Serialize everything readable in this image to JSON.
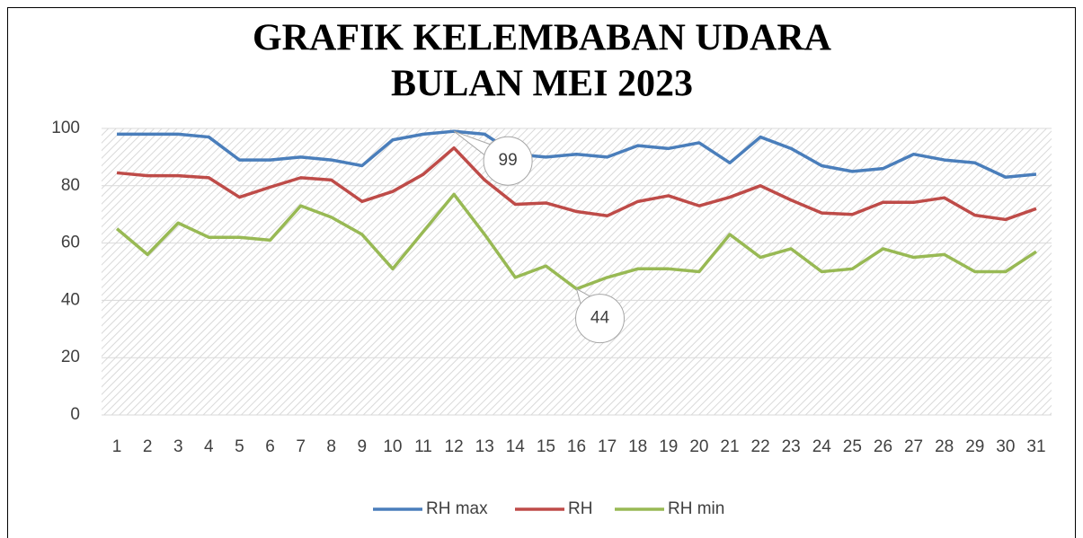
{
  "chart_data": {
    "type": "line",
    "title": [
      "GRAFIK KELEMBABAN UDARA",
      "BULAN MEI 2023"
    ],
    "categories": [
      "1",
      "2",
      "3",
      "4",
      "5",
      "6",
      "7",
      "8",
      "9",
      "10",
      "11",
      "12",
      "13",
      "14",
      "15",
      "16",
      "17",
      "18",
      "19",
      "20",
      "21",
      "22",
      "23",
      "24",
      "25",
      "26",
      "27",
      "28",
      "29",
      "30",
      "31"
    ],
    "series": [
      {
        "name": "RH max",
        "color": "#4a7ebb",
        "values": [
          98,
          98,
          98,
          97,
          89,
          89,
          90,
          89,
          87,
          96,
          98,
          99,
          98,
          91,
          90,
          91,
          90,
          94,
          93,
          95,
          88,
          97,
          93,
          87,
          85,
          86,
          91,
          89,
          88,
          83,
          84
        ]
      },
      {
        "name": "RH",
        "color": "#be4b48",
        "values": [
          84.5,
          83.5,
          83.5,
          82.8,
          76,
          79.5,
          82.8,
          82,
          74.5,
          78,
          84,
          93.2,
          82,
          73.5,
          74,
          71,
          69.5,
          74.5,
          76.5,
          73,
          76,
          80,
          75,
          70.5,
          70,
          74.2,
          74.2,
          75.8,
          69.7,
          68.2,
          72
        ]
      },
      {
        "name": "RH min",
        "color": "#98b954",
        "values": [
          65,
          56,
          67,
          62,
          62,
          61,
          73,
          69,
          63,
          51,
          64,
          77,
          63,
          48,
          52,
          44,
          48,
          51,
          51,
          50,
          63,
          55,
          58,
          50,
          51,
          58,
          55,
          56,
          50,
          50,
          57
        ]
      }
    ],
    "callouts": [
      {
        "series": 0,
        "index": 11
      },
      {
        "series": 2,
        "index": 15
      }
    ],
    "ylim": [
      0,
      100
    ],
    "yticks": [
      0,
      20,
      40,
      60,
      80,
      100
    ],
    "grid": true,
    "legend": "bottom"
  }
}
